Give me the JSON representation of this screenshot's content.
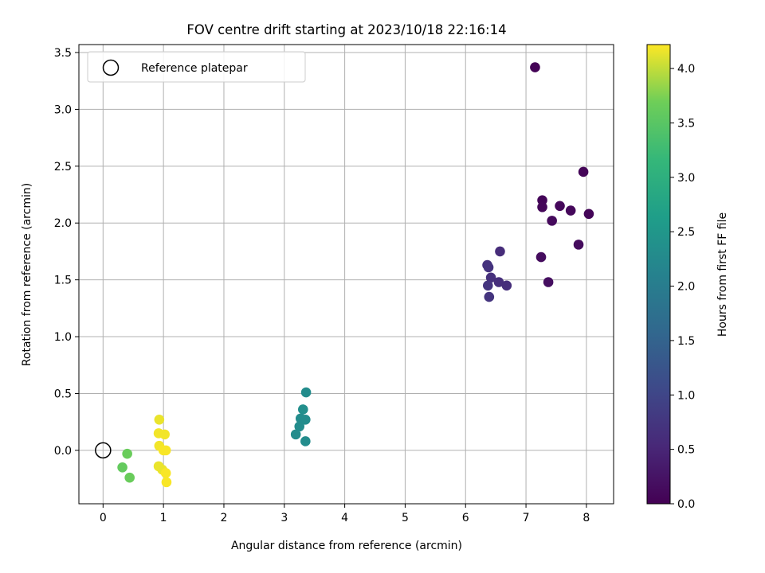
{
  "chart_data": {
    "type": "scatter",
    "title": "FOV centre drift starting at 2023/10/18 22:16:14",
    "xlabel": "Angular distance from reference (arcmin)",
    "ylabel": "Rotation from reference (arcmin)",
    "xlim": [
      -0.4,
      8.45
    ],
    "ylim": [
      -0.47,
      3.57
    ],
    "xticks": [
      0,
      1,
      2,
      3,
      4,
      5,
      6,
      7,
      8
    ],
    "yticks": [
      0.0,
      0.5,
      1.0,
      1.5,
      2.0,
      2.5,
      3.0,
      3.5
    ],
    "xtick_labels": [
      "0",
      "1",
      "2",
      "3",
      "4",
      "5",
      "6",
      "7",
      "8"
    ],
    "ytick_labels": [
      "0.0",
      "0.5",
      "1.0",
      "1.5",
      "2.0",
      "2.5",
      "3.0",
      "3.5"
    ],
    "grid": true,
    "legend": {
      "placement": "top-left",
      "entries": [
        {
          "label": "Reference platepar",
          "marker": "open-circle"
        }
      ]
    },
    "reference": {
      "x": 0.0,
      "y": 0.0
    },
    "colorbar": {
      "label": "Hours from first FF file",
      "colormap": "viridis",
      "range": [
        0.0,
        4.22
      ],
      "ticks": [
        0.0,
        0.5,
        1.0,
        1.5,
        2.0,
        2.5,
        3.0,
        3.5,
        4.0
      ],
      "tick_labels": [
        "0.0",
        "0.5",
        "1.0",
        "1.5",
        "2.0",
        "2.5",
        "3.0",
        "3.5",
        "4.0"
      ]
    },
    "points": [
      {
        "x": 7.15,
        "y": 3.37,
        "hours": 0.03
      },
      {
        "x": 7.95,
        "y": 2.45,
        "hours": 0.05
      },
      {
        "x": 7.27,
        "y": 2.2,
        "hours": 0.06
      },
      {
        "x": 7.27,
        "y": 2.14,
        "hours": 0.08
      },
      {
        "x": 7.56,
        "y": 2.15,
        "hours": 0.1
      },
      {
        "x": 7.74,
        "y": 2.11,
        "hours": 0.1
      },
      {
        "x": 8.04,
        "y": 2.08,
        "hours": 0.06
      },
      {
        "x": 7.43,
        "y": 2.02,
        "hours": 0.12
      },
      {
        "x": 7.87,
        "y": 1.81,
        "hours": 0.13
      },
      {
        "x": 7.25,
        "y": 1.7,
        "hours": 0.15
      },
      {
        "x": 7.37,
        "y": 1.48,
        "hours": 0.18
      },
      {
        "x": 6.57,
        "y": 1.75,
        "hours": 0.6
      },
      {
        "x": 6.36,
        "y": 1.63,
        "hours": 0.68
      },
      {
        "x": 6.38,
        "y": 1.61,
        "hours": 0.7
      },
      {
        "x": 6.42,
        "y": 1.52,
        "hours": 0.65
      },
      {
        "x": 6.55,
        "y": 1.48,
        "hours": 0.62
      },
      {
        "x": 6.37,
        "y": 1.45,
        "hours": 0.72
      },
      {
        "x": 6.68,
        "y": 1.45,
        "hours": 0.63
      },
      {
        "x": 6.39,
        "y": 1.35,
        "hours": 0.72
      },
      {
        "x": 3.36,
        "y": 0.51,
        "hours": 2.3
      },
      {
        "x": 3.31,
        "y": 0.36,
        "hours": 2.35
      },
      {
        "x": 3.27,
        "y": 0.28,
        "hours": 2.3
      },
      {
        "x": 3.35,
        "y": 0.27,
        "hours": 2.3
      },
      {
        "x": 3.25,
        "y": 0.21,
        "hours": 2.3
      },
      {
        "x": 3.19,
        "y": 0.14,
        "hours": 2.3
      },
      {
        "x": 3.35,
        "y": 0.08,
        "hours": 2.3
      },
      {
        "x": 0.4,
        "y": -0.03,
        "hours": 3.65
      },
      {
        "x": 0.32,
        "y": -0.15,
        "hours": 3.6
      },
      {
        "x": 0.44,
        "y": -0.24,
        "hours": 3.65
      },
      {
        "x": 0.93,
        "y": 0.27,
        "hours": 4.15
      },
      {
        "x": 0.92,
        "y": 0.15,
        "hours": 4.18
      },
      {
        "x": 1.02,
        "y": 0.14,
        "hours": 4.18
      },
      {
        "x": 0.93,
        "y": 0.04,
        "hours": 4.18
      },
      {
        "x": 1.0,
        "y": 0.0,
        "hours": 4.2
      },
      {
        "x": 1.04,
        "y": 0.0,
        "hours": 4.2
      },
      {
        "x": 0.92,
        "y": -0.14,
        "hours": 4.15
      },
      {
        "x": 0.98,
        "y": -0.17,
        "hours": 4.15
      },
      {
        "x": 1.04,
        "y": -0.2,
        "hours": 4.2
      },
      {
        "x": 1.05,
        "y": -0.28,
        "hours": 4.2
      }
    ]
  }
}
